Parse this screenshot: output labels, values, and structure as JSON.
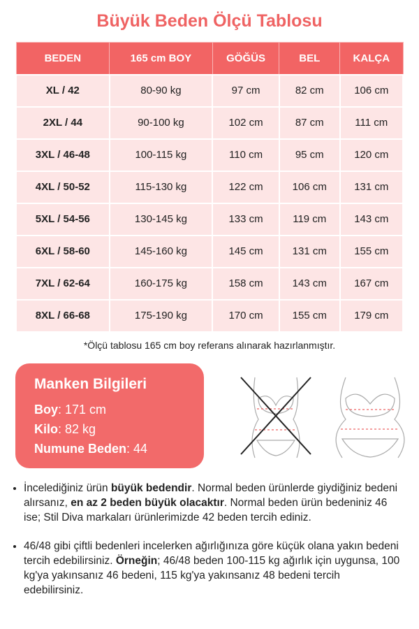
{
  "header": {
    "title": "Büyük Beden Ölçü Tablosu"
  },
  "table": {
    "columns": [
      "BEDEN",
      "165 cm BOY",
      "GÖĞÜS",
      "BEL",
      "KALÇA"
    ],
    "rows": [
      [
        "XL / 42",
        "80-90 kg",
        "97 cm",
        "82 cm",
        "106 cm"
      ],
      [
        "2XL / 44",
        "90-100 kg",
        "102 cm",
        "87 cm",
        "111 cm"
      ],
      [
        "3XL / 46-48",
        "100-115 kg",
        "110 cm",
        "95 cm",
        "120 cm"
      ],
      [
        "4XL / 50-52",
        "115-130 kg",
        "122 cm",
        "106 cm",
        "131 cm"
      ],
      [
        "5XL / 54-56",
        "130-145 kg",
        "133 cm",
        "119 cm",
        "143 cm"
      ],
      [
        "6XL / 58-60",
        "145-160 kg",
        "145 cm",
        "131 cm",
        "155 cm"
      ],
      [
        "7XL / 62-64",
        "160-175 kg",
        "158 cm",
        "143 cm",
        "167 cm"
      ],
      [
        "8XL / 66-68",
        "175-190 kg",
        "170 cm",
        "155 cm",
        "179 cm"
      ]
    ],
    "footnote": "*Ölçü tablosu 165 cm boy referans alınarak hazırlanmıştır."
  },
  "model": {
    "title": "Manken Bilgileri",
    "items": [
      {
        "label": "Boy",
        "value": ": 171 cm"
      },
      {
        "label": "Kilo",
        "value": ": 82 kg"
      },
      {
        "label": "Numune Beden",
        "value": ": 44"
      }
    ]
  },
  "notes": [
    [
      {
        "text": "İncelediğiniz ürün ",
        "bold": false
      },
      {
        "text": "büyük bedendir",
        "bold": true
      },
      {
        "text": ". Normal beden ürünlerde giydiğiniz bedeni alırsanız, ",
        "bold": false
      },
      {
        "text": "en az 2 beden büyük olacaktır",
        "bold": true
      },
      {
        "text": ". Normal beden ürün bedeniniz 46 ise; Stil Diva markaları ürünlerimizde 42 beden tercih ediniz.",
        "bold": false
      }
    ],
    [
      {
        "text": "46/48 gibi çiftli bedenleri incelerken ağırlığınıza göre küçük olana yakın bedeni tercih edebilirsiniz. ",
        "bold": false
      },
      {
        "text": "Örneğin",
        "bold": true
      },
      {
        "text": "; 46/48 beden 100-115 kg ağırlık için uygunsa, 100 kg'ya yakınsanız 46 bedeni, 115 kg'ya yakınsanız 48 bedeni tercih edebilirsiniz.",
        "bold": false
      }
    ]
  ]
}
